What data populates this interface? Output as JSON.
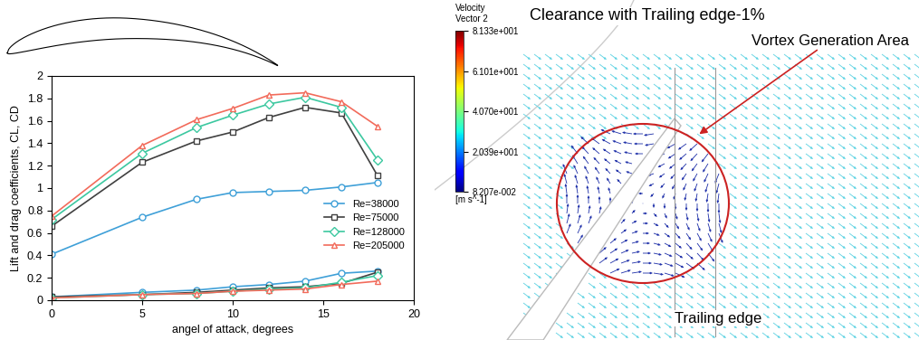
{
  "chart_data": {
    "type": "line",
    "x_label": "angel of attack, degrees",
    "y_label": "Lift and drag coefficients, CL, CD",
    "x": [
      0,
      5,
      8,
      10,
      12,
      14,
      16,
      18
    ],
    "xlim": [
      0,
      20
    ],
    "xticks": [
      0,
      5,
      10,
      15,
      20
    ],
    "ylim": [
      0,
      2
    ],
    "yticks": [
      0,
      0.2,
      0.4,
      0.6,
      0.8,
      1,
      1.2,
      1.4,
      1.6,
      1.8,
      2
    ],
    "grid": false,
    "legend": "lower right",
    "series": [
      {
        "name": "Re=38000",
        "color": "#3fa0d8",
        "marker": "circle",
        "line_style": "solid",
        "values": [
          0.41,
          0.74,
          0.9,
          0.96,
          0.97,
          0.98,
          1.01,
          1.05
        ],
        "drag": [
          0.03,
          0.07,
          0.09,
          0.12,
          0.14,
          0.17,
          0.24,
          0.26
        ]
      },
      {
        "name": "Re=75000",
        "color": "#404040",
        "marker": "square",
        "line_style": "solid",
        "values": [
          0.66,
          1.23,
          1.42,
          1.5,
          1.63,
          1.72,
          1.67,
          1.11
        ],
        "drag": [
          0.03,
          0.05,
          0.07,
          0.09,
          0.11,
          0.12,
          0.15,
          0.25
        ]
      },
      {
        "name": "Re=128000",
        "color": "#3cc8a0",
        "marker": "diamond",
        "line_style": "solid",
        "values": [
          0.72,
          1.31,
          1.54,
          1.65,
          1.75,
          1.81,
          1.72,
          1.25
        ],
        "drag": [
          0.02,
          0.05,
          0.06,
          0.08,
          0.1,
          0.11,
          0.16,
          0.22
        ]
      },
      {
        "name": "Re=205000",
        "color": "#f26b5b",
        "marker": "triangle",
        "line_style": "solid",
        "values": [
          0.75,
          1.38,
          1.61,
          1.71,
          1.83,
          1.85,
          1.77,
          1.55
        ],
        "drag": [
          0.02,
          0.05,
          0.06,
          0.08,
          0.09,
          0.1,
          0.14,
          0.17
        ]
      }
    ]
  },
  "flow_panel": {
    "title": "Clearance with Trailing edge-1%",
    "vortex_label": "Vortex Generation Area",
    "trailing_edge_label": "Trailing edge",
    "colorbar": {
      "title_lines": [
        "Velocity",
        "Vector 2"
      ],
      "unit": "[m s^-1]",
      "range": [
        0.08207,
        81.33
      ],
      "ticks": [
        {
          "value": 81.33,
          "label": "8.133e+001"
        },
        {
          "value": 61.01,
          "label": "6.101e+001"
        },
        {
          "value": 40.7,
          "label": "4.070e+001"
        },
        {
          "value": 20.39,
          "label": "2.039e+001"
        },
        {
          "value": 0.08207,
          "label": "8.207e-002"
        }
      ]
    }
  }
}
